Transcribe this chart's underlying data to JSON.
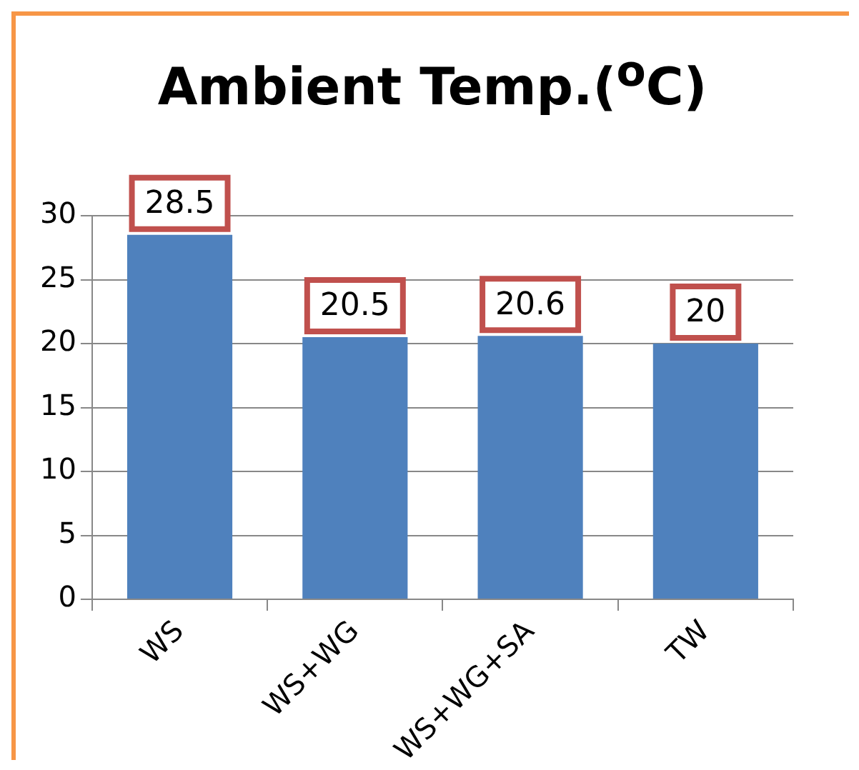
{
  "chart_data": {
    "type": "bar",
    "title": "Ambient Temp.($^{o}$C)",
    "categories": [
      "WS",
      "WS+WG",
      "WS+WG+SA",
      "TW"
    ],
    "values": [
      28.5,
      20.5,
      20.6,
      20
    ],
    "color": "#4f81bd",
    "ylim": [
      0,
      30
    ],
    "yticks": [
      0,
      5,
      10,
      15,
      20,
      25,
      30
    ],
    "grid": "y",
    "data_labels": true
  }
}
